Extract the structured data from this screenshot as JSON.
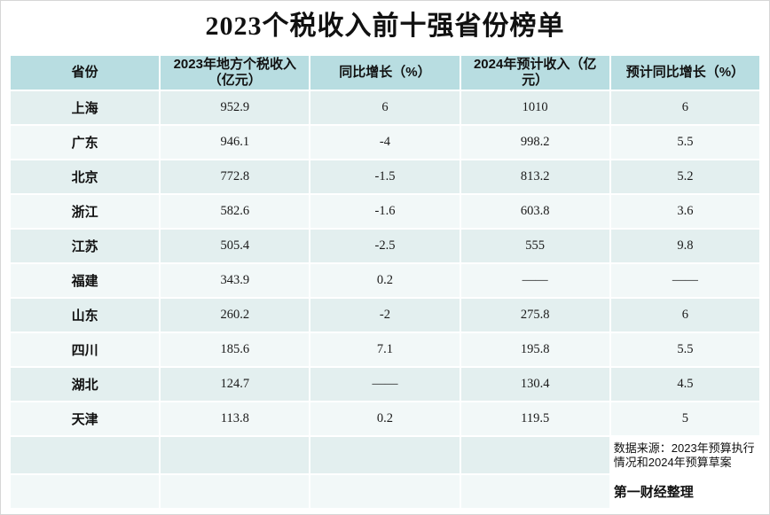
{
  "title": "2023个税收入前十强省份榜单",
  "chart_data": {
    "type": "table",
    "title": "2023个税收入前十强省份榜单",
    "columns": [
      "省份",
      "2023年地方个税收入\n（亿元）",
      "同比增长（%）",
      "2024年预计收入（亿元）",
      "预计同比增长（%）"
    ],
    "rows": [
      [
        "上海",
        "952.9",
        "6",
        "1010",
        "6"
      ],
      [
        "广东",
        "946.1",
        "-4",
        "998.2",
        "5.5"
      ],
      [
        "北京",
        "772.8",
        "-1.5",
        "813.2",
        "5.2"
      ],
      [
        "浙江",
        "582.6",
        "-1.6",
        "603.8",
        "3.6"
      ],
      [
        "江苏",
        "505.4",
        "-2.5",
        "555",
        "9.8"
      ],
      [
        "福建",
        "343.9",
        "0.2",
        "——",
        "——"
      ],
      [
        "山东",
        "260.2",
        "-2",
        "275.8",
        "6"
      ],
      [
        "四川",
        "185.6",
        "7.1",
        "195.8",
        "5.5"
      ],
      [
        "湖北",
        "124.7",
        "——",
        "130.4",
        "4.5"
      ],
      [
        "天津",
        "113.8",
        "0.2",
        "119.5",
        "5"
      ]
    ]
  },
  "footer": {
    "source_note": "数据来源：2023年预算执行情况和2024年预算草案",
    "credit": "第一财经整理"
  },
  "colors": {
    "header_bg": "#b8dde1",
    "row_odd_bg": "#e3efef",
    "row_even_bg": "#f2f8f8",
    "grid": "#ffffff",
    "text": "#111111"
  }
}
